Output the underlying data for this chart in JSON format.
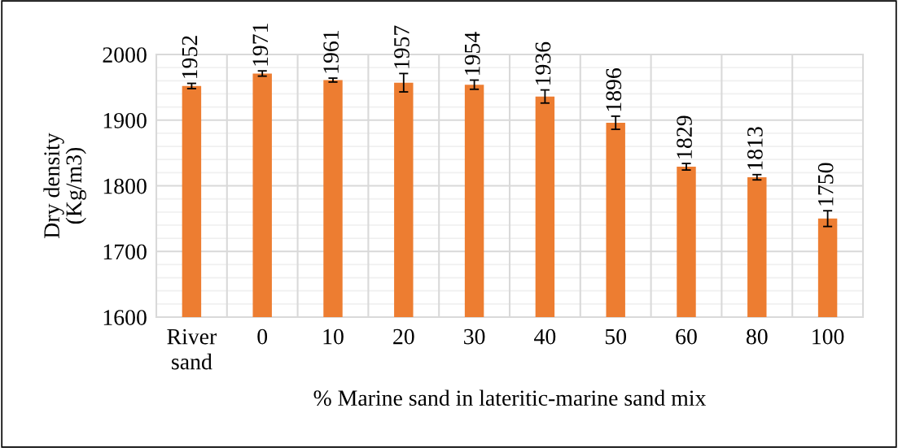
{
  "chart_data": {
    "type": "bar",
    "categories": [
      "River\nsand",
      "0",
      "10",
      "20",
      "30",
      "40",
      "50",
      "60",
      "80",
      "100"
    ],
    "values": [
      1952,
      1971,
      1961,
      1957,
      1954,
      1936,
      1896,
      1829,
      1813,
      1750
    ],
    "errors": [
      4,
      4,
      3,
      14,
      7,
      10,
      10,
      5,
      4,
      12
    ],
    "color": "#ed7d31",
    "xlabel": "% Marine sand in lateritic-marine sand mix",
    "ylabel": "Dry density\n(Kg/m3)",
    "ylim": [
      1600,
      2000
    ],
    "yticks": [
      1600,
      {
        "value": 1620,
        "label": null
      },
      {
        "value": 1640,
        "label": null
      },
      {
        "value": 1660,
        "label": null
      },
      {
        "value": 1680,
        "label": null
      },
      1700,
      {
        "value": 1720,
        "label": null
      },
      {
        "value": 1740,
        "label": null
      },
      {
        "value": 1760,
        "label": null
      },
      {
        "value": 1780,
        "label": null
      },
      1800,
      {
        "value": 1820,
        "label": null
      },
      {
        "value": 1840,
        "label": null
      },
      {
        "value": 1860,
        "label": null
      },
      {
        "value": 1880,
        "label": null
      },
      1900,
      {
        "value": 1920,
        "label": null
      },
      {
        "value": 1940,
        "label": null
      },
      {
        "value": 1960,
        "label": null
      },
      {
        "value": 1980,
        "label": null
      },
      2000
    ],
    "grid": true,
    "data_labels": true
  }
}
